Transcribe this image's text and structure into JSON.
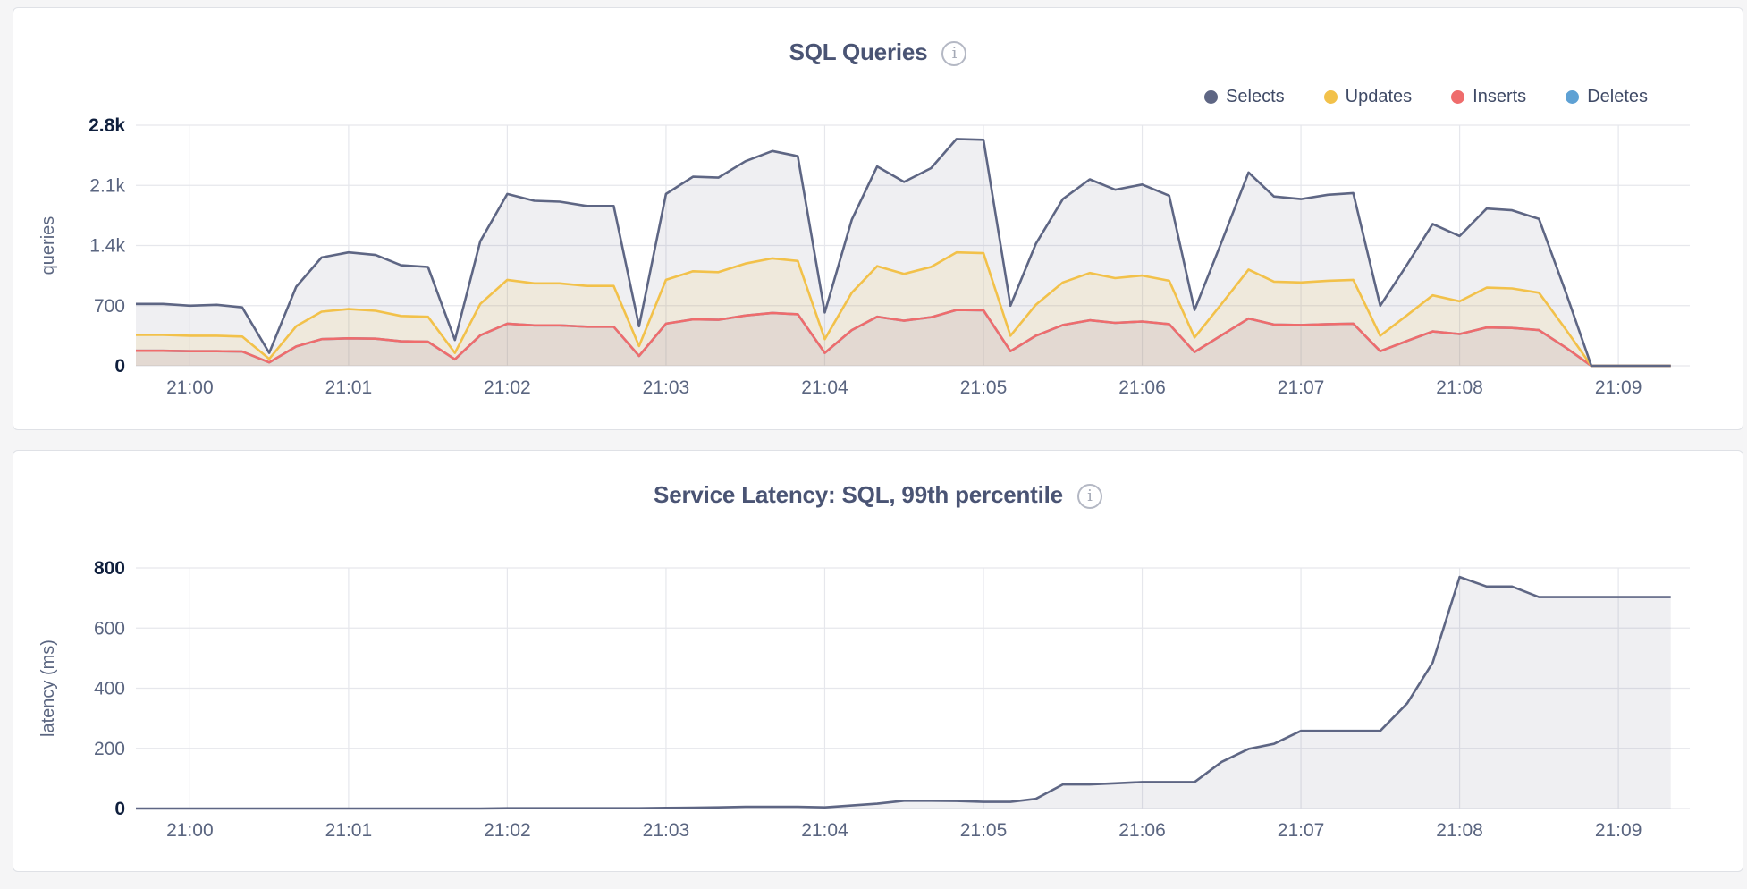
{
  "charts": [
    {
      "title": "SQL Queries",
      "info_icon": "info-icon",
      "legend": [
        {
          "name": "Selects",
          "color": "#5e6684"
        },
        {
          "name": "Updates",
          "color": "#f2c14a"
        },
        {
          "name": "Inserts",
          "color": "#ef6c6c"
        },
        {
          "name": "Deletes",
          "color": "#5ea1d4"
        }
      ]
    },
    {
      "title": "Service Latency: SQL, 99th percentile",
      "info_icon": "info-icon"
    }
  ],
  "chart_data": [
    {
      "type": "area",
      "title": "SQL Queries",
      "ylabel": "queries",
      "ylim": [
        0,
        2800
      ],
      "yticks": [
        0,
        700,
        1400,
        2100,
        2800
      ],
      "ytick_labels": [
        "0",
        "700",
        "1.4k",
        "2.1k",
        "2.8k"
      ],
      "xlim": [
        -0.34,
        9.45
      ],
      "xticks": [
        0,
        1,
        2,
        3,
        4,
        5,
        6,
        7,
        8,
        9
      ],
      "xtick_labels": [
        "21:00",
        "21:01",
        "21:02",
        "21:03",
        "21:04",
        "21:05",
        "21:06",
        "21:07",
        "21:08",
        "21:09"
      ],
      "x_unit": "minutes after 21:00",
      "grid": true,
      "legend_position": "top-right",
      "x": [
        -0.34,
        -0.17,
        0.0,
        0.17,
        0.33,
        0.5,
        0.67,
        0.83,
        1.0,
        1.17,
        1.33,
        1.5,
        1.67,
        1.83,
        2.0,
        2.17,
        2.33,
        2.5,
        2.67,
        2.83,
        3.0,
        3.17,
        3.33,
        3.5,
        3.67,
        3.83,
        4.0,
        4.17,
        4.33,
        4.5,
        4.67,
        4.83,
        5.0,
        5.17,
        5.33,
        5.5,
        5.67,
        5.83,
        6.0,
        6.17,
        6.33,
        6.5,
        6.67,
        6.83,
        7.0,
        7.17,
        7.33,
        7.5,
        7.67,
        7.83,
        8.0,
        8.17,
        8.33,
        8.5,
        8.67,
        8.83,
        9.0,
        9.17,
        9.33
      ],
      "series": [
        {
          "name": "Selects",
          "color": "#5e6684",
          "values": [
            720,
            720,
            700,
            710,
            680,
            150,
            920,
            1260,
            1320,
            1290,
            1170,
            1150,
            300,
            1450,
            2000,
            1920,
            1910,
            1860,
            1860,
            460,
            2000,
            2200,
            2190,
            2380,
            2500,
            2440,
            620,
            1700,
            2320,
            2140,
            2300,
            2640,
            2630,
            700,
            1420,
            1940,
            2170,
            2050,
            2110,
            1980,
            650,
            1440,
            2250,
            1970,
            1940,
            1990,
            2010,
            700,
            1180,
            1650,
            1510,
            1830,
            1810,
            1710,
            850,
            0,
            0,
            0,
            0
          ]
        },
        {
          "name": "Updates",
          "color": "#f2c14a",
          "values": [
            360,
            360,
            350,
            350,
            340,
            80,
            460,
            630,
            660,
            640,
            580,
            570,
            150,
            720,
            1000,
            960,
            960,
            930,
            930,
            230,
            1000,
            1100,
            1090,
            1190,
            1250,
            1220,
            310,
            850,
            1160,
            1070,
            1150,
            1320,
            1310,
            350,
            710,
            970,
            1080,
            1020,
            1050,
            990,
            330,
            720,
            1120,
            980,
            970,
            990,
            1000,
            350,
            590,
            820,
            750,
            910,
            900,
            850,
            420,
            0,
            0,
            0,
            0
          ]
        },
        {
          "name": "Inserts",
          "color": "#ef6c6c",
          "values": [
            175,
            175,
            170,
            170,
            165,
            40,
            225,
            310,
            320,
            315,
            285,
            280,
            75,
            355,
            490,
            470,
            470,
            455,
            455,
            115,
            490,
            540,
            535,
            585,
            615,
            600,
            150,
            415,
            570,
            525,
            565,
            650,
            645,
            170,
            350,
            475,
            530,
            500,
            515,
            485,
            160,
            355,
            550,
            480,
            475,
            485,
            490,
            170,
            290,
            400,
            370,
            445,
            440,
            415,
            210,
            0,
            0,
            0,
            0
          ]
        },
        {
          "name": "Deletes",
          "color": "#5ea1d4",
          "values": [
            175,
            175,
            170,
            170,
            165,
            40,
            225,
            310,
            320,
            315,
            285,
            280,
            75,
            355,
            490,
            470,
            470,
            455,
            455,
            115,
            490,
            540,
            535,
            585,
            615,
            600,
            150,
            415,
            570,
            525,
            565,
            650,
            645,
            170,
            350,
            475,
            530,
            500,
            515,
            485,
            160,
            355,
            550,
            480,
            475,
            485,
            490,
            170,
            290,
            400,
            370,
            445,
            440,
            415,
            210,
            0,
            0,
            0,
            0
          ]
        }
      ]
    },
    {
      "type": "area",
      "title": "Service Latency: SQL, 99th percentile",
      "ylabel": "latency (ms)",
      "ylim": [
        0,
        800
      ],
      "yticks": [
        0,
        200,
        400,
        600,
        800
      ],
      "ytick_labels": [
        "0",
        "200",
        "400",
        "600",
        "800"
      ],
      "xlim": [
        -0.34,
        9.45
      ],
      "xticks": [
        0,
        1,
        2,
        3,
        4,
        5,
        6,
        7,
        8,
        9
      ],
      "xtick_labels": [
        "21:00",
        "21:01",
        "21:02",
        "21:03",
        "21:04",
        "21:05",
        "21:06",
        "21:07",
        "21:08",
        "21:09"
      ],
      "x_unit": "minutes after 21:00",
      "grid": true,
      "x": [
        -0.34,
        -0.17,
        0.0,
        0.17,
        0.33,
        0.5,
        0.67,
        0.83,
        1.0,
        1.17,
        1.33,
        1.5,
        1.67,
        1.83,
        2.0,
        2.17,
        2.33,
        2.5,
        2.67,
        2.83,
        3.0,
        3.17,
        3.33,
        3.5,
        3.67,
        3.83,
        4.0,
        4.17,
        4.33,
        4.5,
        4.67,
        4.83,
        5.0,
        5.17,
        5.33,
        5.5,
        5.67,
        5.83,
        6.0,
        6.17,
        6.33,
        6.5,
        6.67,
        6.83,
        7.0,
        7.17,
        7.33,
        7.5,
        7.67,
        7.83,
        8.0,
        8.17,
        8.33,
        8.5,
        8.67,
        8.83,
        9.0,
        9.17,
        9.33
      ],
      "series": [
        {
          "color": "#5e6684",
          "values": [
            0,
            0,
            0,
            0,
            0,
            0,
            0,
            0,
            0,
            0,
            0,
            0,
            0,
            0,
            1,
            1,
            1,
            1,
            1,
            1,
            2,
            3,
            4,
            6,
            6,
            6,
            4,
            10,
            16,
            26,
            26,
            25,
            22,
            22,
            32,
            80,
            80,
            84,
            88,
            88,
            88,
            155,
            198,
            215,
            258,
            258,
            258,
            258,
            350,
            485,
            770,
            738,
            738,
            703,
            703,
            703,
            703,
            703,
            703
          ]
        }
      ]
    }
  ]
}
